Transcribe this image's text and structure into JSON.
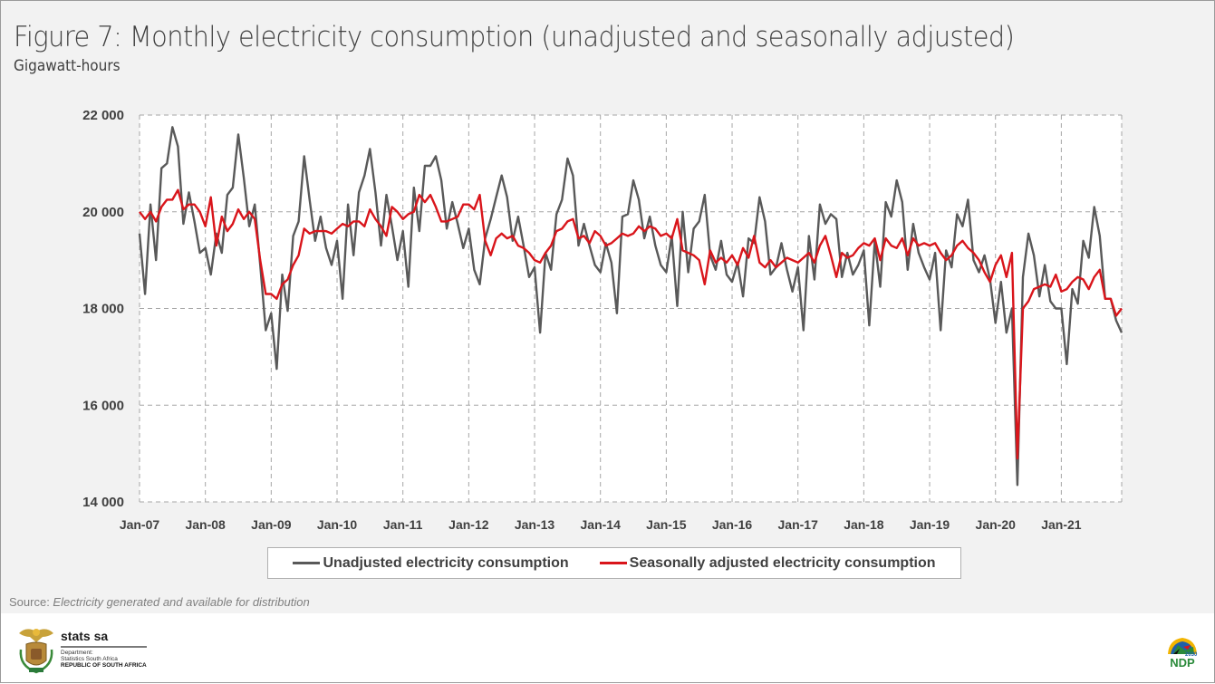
{
  "header": {
    "title": "Figure 7: Monthly electricity consumption (unadjusted and seasonally adjusted)",
    "subtitle": "Gigawatt-hours"
  },
  "source": {
    "prefix": "Source: ",
    "text": "Electricity generated and available for distribution"
  },
  "footer": {
    "org_name": "stats sa",
    "dept_line1": "Department:",
    "dept_line2": "Statistics South Africa",
    "dept_line3": "REPUBLIC OF SOUTH AFRICA",
    "right_logo_text": "NDP",
    "right_logo_year": "2030"
  },
  "colors": {
    "unadjusted": "#595959",
    "seasonally_adjusted": "#d9151b",
    "grid": "#a6a6a6",
    "background": "#f2f2f2"
  },
  "chart_data": {
    "type": "line",
    "title": "Figure 7: Monthly electricity consumption (unadjusted and seasonally adjusted)",
    "subtitle": "Gigawatt-hours",
    "xlabel": "",
    "ylabel": "Gigawatt-hours",
    "ylim": [
      14000,
      22000
    ],
    "yticks": [
      14000,
      16000,
      18000,
      20000,
      22000
    ],
    "ytick_labels": [
      "14 000",
      "16 000",
      "18 000",
      "20 000",
      "22 000"
    ],
    "xtick_labels": [
      "Jan-07",
      "Jan-08",
      "Jan-09",
      "Jan-10",
      "Jan-11",
      "Jan-12",
      "Jan-13",
      "Jan-14",
      "Jan-15",
      "Jan-16",
      "Jan-17",
      "Jan-18",
      "Jan-19",
      "Jan-20",
      "Jan-21"
    ],
    "x_start": "Jan-07",
    "x_end": "Dec-21",
    "months_count": 180,
    "grid": true,
    "legend_position": "bottom",
    "series": [
      {
        "name": "Unadjusted electricity consumption",
        "color": "#595959",
        "values": [
          19550,
          18300,
          20150,
          19000,
          20900,
          21000,
          21750,
          21350,
          19750,
          20400,
          19800,
          19150,
          19250,
          18700,
          19550,
          19150,
          20350,
          20500,
          21600,
          20700,
          19700,
          20150,
          18900,
          17550,
          17900,
          16750,
          18700,
          17950,
          19500,
          19800,
          21150,
          20250,
          19400,
          19900,
          19250,
          18900,
          19400,
          18200,
          20150,
          19100,
          20400,
          20750,
          21300,
          20400,
          19300,
          20350,
          19700,
          19000,
          19600,
          18450,
          20500,
          19600,
          20950,
          20950,
          21150,
          20650,
          19650,
          20200,
          19750,
          19250,
          19650,
          18800,
          18500,
          19450,
          19850,
          20300,
          20750,
          20300,
          19400,
          19900,
          19300,
          18650,
          18850,
          17500,
          19150,
          18800,
          19950,
          20250,
          21100,
          20750,
          19300,
          19750,
          19300,
          18900,
          18750,
          19350,
          18950,
          17900,
          19900,
          19950,
          20650,
          20250,
          19450,
          19900,
          19300,
          18900,
          18750,
          19500,
          18050,
          20000,
          18750,
          19650,
          19800,
          20350,
          19100,
          18800,
          19400,
          18700,
          18550,
          18950,
          18250,
          19450,
          19350,
          20300,
          19800,
          18700,
          18850,
          19350,
          18800,
          18350,
          18850,
          17550,
          19500,
          18600,
          20150,
          19750,
          19950,
          19850,
          18650,
          19150,
          18700,
          18900,
          19200,
          17650,
          19400,
          18450,
          20200,
          19900,
          20650,
          20200,
          18800,
          19750,
          19150,
          18850,
          18600,
          19150,
          17550,
          19200,
          18850,
          19950,
          19700,
          20250,
          19000,
          18750,
          19100,
          18600,
          17700,
          18550,
          17500,
          18000,
          14350,
          18650,
          19550,
          19100,
          18250,
          18900,
          18150,
          18000,
          18000,
          16850,
          18400,
          18100,
          19400,
          19050,
          20100,
          19500,
          18200,
          18200,
          17750,
          17500
        ]
      },
      {
        "name": "Seasonally adjusted electricity consumption",
        "color": "#d9151b",
        "values": [
          20000,
          19850,
          20000,
          19800,
          20100,
          20250,
          20250,
          20450,
          20050,
          20150,
          20150,
          20000,
          19700,
          20300,
          19300,
          19900,
          19600,
          19750,
          20050,
          19850,
          20000,
          19850,
          19000,
          18300,
          18300,
          18200,
          18500,
          18600,
          18900,
          19100,
          19650,
          19550,
          19600,
          19600,
          19600,
          19550,
          19650,
          19750,
          19700,
          19800,
          19800,
          19700,
          20050,
          19850,
          19700,
          19500,
          20100,
          20000,
          19850,
          19950,
          20000,
          20350,
          20200,
          20350,
          20100,
          19800,
          19800,
          19850,
          19900,
          20150,
          20150,
          20050,
          20350,
          19400,
          19100,
          19450,
          19550,
          19450,
          19500,
          19300,
          19250,
          19150,
          19000,
          18950,
          19150,
          19300,
          19600,
          19650,
          19800,
          19850,
          19450,
          19500,
          19350,
          19600,
          19500,
          19300,
          19350,
          19450,
          19550,
          19500,
          19550,
          19700,
          19600,
          19700,
          19650,
          19500,
          19550,
          19450,
          19850,
          19200,
          19150,
          19100,
          19000,
          18500,
          19200,
          18950,
          19050,
          18950,
          19100,
          18900,
          19250,
          19050,
          19500,
          18950,
          18850,
          19000,
          18850,
          18950,
          19050,
          19000,
          18950,
          19050,
          19150,
          18950,
          19300,
          19500,
          19100,
          18650,
          19150,
          19050,
          19100,
          19250,
          19350,
          19300,
          19450,
          19000,
          19450,
          19300,
          19250,
          19450,
          19100,
          19450,
          19300,
          19350,
          19300,
          19350,
          19150,
          19000,
          19100,
          19300,
          19400,
          19250,
          19150,
          19000,
          18750,
          18550,
          18900,
          19100,
          18650,
          19150,
          14900,
          18000,
          18150,
          18400,
          18450,
          18500,
          18450,
          18700,
          18350,
          18400,
          18550,
          18650,
          18600,
          18400,
          18650,
          18800,
          18200,
          18200,
          17850,
          18000
        ]
      }
    ]
  }
}
